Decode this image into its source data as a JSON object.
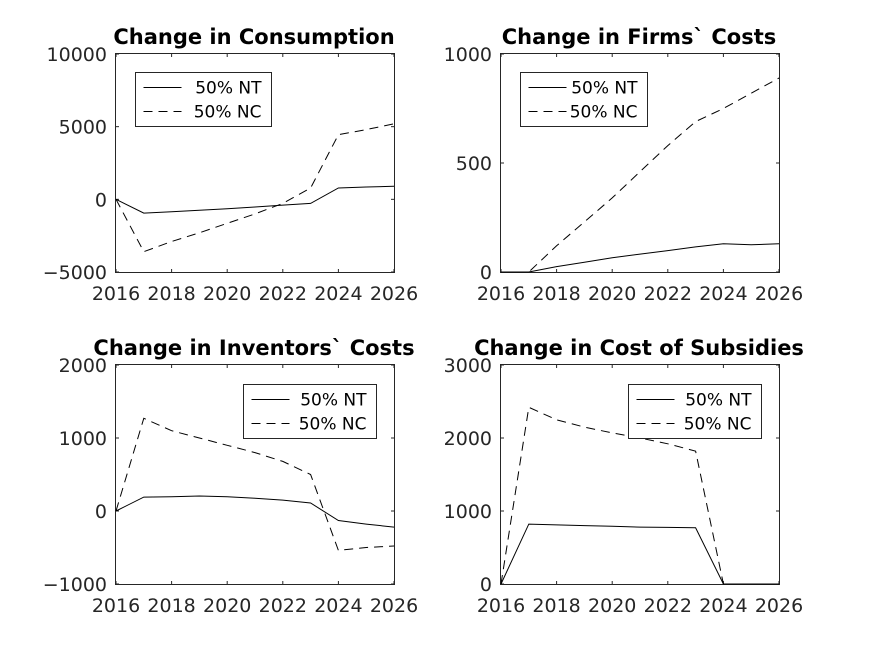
{
  "chart_data": [
    {
      "type": "line",
      "title": "Change in Consumption",
      "x": [
        2016,
        2017,
        2018,
        2019,
        2020,
        2021,
        2022,
        2023,
        2024,
        2025,
        2026
      ],
      "xlim": [
        2016,
        2026
      ],
      "ylim": [
        -5000,
        10000
      ],
      "xticks": [
        2016,
        2018,
        2020,
        2022,
        2024,
        2026
      ],
      "yticks": [
        -5000,
        0,
        5000,
        10000
      ],
      "legend_position": "top-left",
      "series": [
        {
          "name": "50% NT",
          "style": "solid",
          "values": [
            0,
            -950,
            -850,
            -750,
            -650,
            -530,
            -400,
            -280,
            780,
            850,
            900
          ]
        },
        {
          "name": "50% NC",
          "style": "dashed",
          "values": [
            0,
            -3600,
            -2900,
            -2300,
            -1650,
            -1000,
            -280,
            780,
            4450,
            4800,
            5200
          ]
        }
      ]
    },
    {
      "type": "line",
      "title": "Change in Firms` Costs",
      "x": [
        2016,
        2017,
        2018,
        2019,
        2020,
        2021,
        2022,
        2023,
        2024,
        2025,
        2026
      ],
      "xlim": [
        2016,
        2026
      ],
      "ylim": [
        0,
        1000
      ],
      "xticks": [
        2016,
        2018,
        2020,
        2022,
        2024,
        2026
      ],
      "yticks": [
        0,
        500,
        1000
      ],
      "legend_position": "top-left",
      "series": [
        {
          "name": "50% NT",
          "style": "solid",
          "values": [
            0,
            0,
            25,
            45,
            65,
            82,
            98,
            115,
            130,
            125,
            130
          ]
        },
        {
          "name": "50% NC",
          "style": "dashed",
          "values": [
            0,
            0,
            120,
            230,
            340,
            460,
            580,
            690,
            750,
            820,
            890
          ]
        }
      ]
    },
    {
      "type": "line",
      "title": "Change in Inventors` Costs",
      "x": [
        2016,
        2017,
        2018,
        2019,
        2020,
        2021,
        2022,
        2023,
        2024,
        2025,
        2026
      ],
      "xlim": [
        2016,
        2026
      ],
      "ylim": [
        -1000,
        2000
      ],
      "xticks": [
        2016,
        2018,
        2020,
        2022,
        2024,
        2026
      ],
      "yticks": [
        -1000,
        0,
        1000,
        2000
      ],
      "legend_position": "top-right",
      "series": [
        {
          "name": "50% NT",
          "style": "solid",
          "values": [
            0,
            190,
            195,
            205,
            195,
            175,
            150,
            110,
            -130,
            -180,
            -220
          ]
        },
        {
          "name": "50% NC",
          "style": "dashed",
          "values": [
            0,
            1270,
            1100,
            1000,
            900,
            800,
            680,
            500,
            -540,
            -500,
            -480
          ]
        }
      ]
    },
    {
      "type": "line",
      "title": "Change in Cost of Subsidies",
      "x": [
        2016,
        2017,
        2018,
        2019,
        2020,
        2021,
        2022,
        2023,
        2024,
        2025,
        2026
      ],
      "xlim": [
        2016,
        2026
      ],
      "ylim": [
        0,
        3000
      ],
      "xticks": [
        2016,
        2018,
        2020,
        2022,
        2024,
        2026
      ],
      "yticks": [
        0,
        1000,
        2000,
        3000
      ],
      "legend_position": "top-right",
      "series": [
        {
          "name": "50% NT",
          "style": "solid",
          "values": [
            0,
            820,
            810,
            800,
            790,
            780,
            775,
            770,
            0,
            0,
            0
          ]
        },
        {
          "name": "50% NC",
          "style": "dashed",
          "values": [
            0,
            2420,
            2250,
            2150,
            2070,
            2000,
            1920,
            1820,
            0,
            0,
            0
          ]
        }
      ]
    }
  ]
}
